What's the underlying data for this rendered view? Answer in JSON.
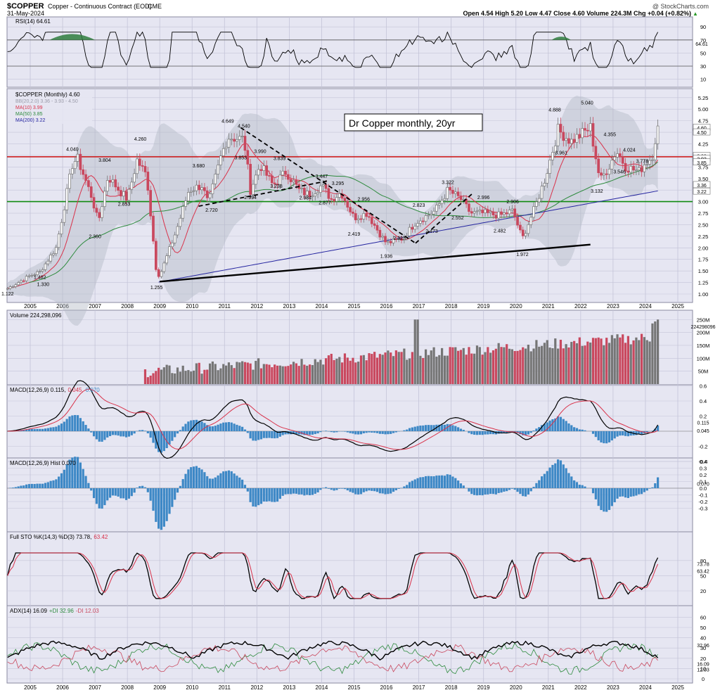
{
  "header": {
    "symbol": "$COPPER",
    "name": "Copper - Continuous Contract (EOD)",
    "exchange": "CME",
    "date": "31-May-2024",
    "watermark": "@ StockCharts.com",
    "quote": "Open 4.54  High 5.20  Low 4.47  Close 4.60  Volume 224.3M  Chg +0.04 (+0.82%)",
    "up_arrow": "▲"
  },
  "colors": {
    "panel_bg": "#e6e6f2",
    "grid": "#c4c4d8",
    "up": "#757575",
    "down": "#c9485e",
    "ma10": "#d9324a",
    "ma50": "#2e8b3e",
    "ma200": "#2525a0",
    "bb_fill": "#b4bbc6",
    "macd_hist": "#3d88c6",
    "red_line": "#cc1010",
    "green_line": "#108a10"
  },
  "panels": {
    "rsi": {
      "title": "RSI(14) 64.61",
      "ticks": [
        "90",
        "70",
        "50",
        "30",
        "10"
      ],
      "value_label": "64.61"
    },
    "price": {
      "title": "$COPPER (Monthly) 4.60",
      "legend": [
        {
          "text": "BB(20,2.0) 3.36 - 3.93 - 4.50",
          "color": "#9a9aa8"
        },
        {
          "text": "MA(10) 3.99",
          "color": "#d9324a"
        },
        {
          "text": "MA(50) 3.85",
          "color": "#2e8b3e"
        },
        {
          "text": "MA(200) 3.22",
          "color": "#2525a0"
        }
      ],
      "ticks": [
        "5.25",
        "5.00",
        "4.75",
        "4.50",
        "4.25",
        "4.00",
        "3.75",
        "3.50",
        "3.25",
        "3.00",
        "2.75",
        "2.50",
        "2.25",
        "2.00",
        "1.75",
        "1.50",
        "1.25",
        "1.00"
      ],
      "right_labels": [
        "4.60",
        "4.50",
        "3.99",
        "3.93",
        "3.85",
        "3.36",
        "3.22"
      ],
      "annotation": "Dr Copper monthly, 20yr",
      "hline_red": 3.97,
      "hline_green": 3.0,
      "point_labels": [
        "1.122",
        "1.482",
        "1.330",
        "4.040",
        "2.360",
        "3.804",
        "2.853",
        "4.260",
        "1.255",
        "3.680",
        "2.720",
        "4.649",
        "4.540",
        "3.853",
        "3.990",
        "2.994",
        "3.839",
        "3.238",
        "2.984",
        "3.447",
        "3.295",
        "2.877",
        "2.956",
        "2.419",
        "2.323",
        "1.936",
        "2.823",
        "3.322",
        "2.473",
        "2.552",
        "2.996",
        "2.482",
        "2.906",
        "1.972",
        "4.888",
        "3.961",
        "5.040",
        "4.355",
        "3.132",
        "4.024",
        "3.546",
        "3.778"
      ]
    },
    "volume": {
      "title": "Volume 224,298,096",
      "ticks": [
        "250M",
        "200M",
        "150M",
        "100M",
        "50M"
      ],
      "value_label": "224298096"
    },
    "macd": {
      "title": "MACD(12,26,9) 0.115,",
      "signal_text": "0.045,",
      "hist_text": "0.070",
      "ticks": [
        "0.6",
        "0.4",
        "0.2",
        "-0.2",
        "-0.4"
      ],
      "right_labels": [
        "0.115",
        "0.045"
      ]
    },
    "hist": {
      "title": "MACD(12,26,9) Hist 0.070",
      "ticks": [
        "0.4",
        "0.3",
        "0.2",
        "0.1",
        "0.0",
        "-0.1",
        "-0.2",
        "-0.3"
      ],
      "value_label": "0.070"
    },
    "sto": {
      "title": "Full STO %K(14,3) %D(3) 73.78,",
      "d_text": "63.42",
      "ticks": [
        "80",
        "50",
        "20"
      ],
      "right_labels": [
        "73.78",
        "63.42"
      ]
    },
    "adx": {
      "title": "ADX(14) 16.09",
      "plus_text": "+DI 32.96",
      "minus_text": "-DI 12.03",
      "ticks": [
        "60",
        "50",
        "40",
        "30",
        "20",
        "10",
        "0"
      ],
      "right_labels": [
        "32.96",
        "16.09",
        "12.03"
      ]
    }
  },
  "x_axis": {
    "labels": [
      "2005",
      "2006",
      "2007",
      "2008",
      "2009",
      "2010",
      "2011",
      "2012",
      "2013",
      "2014",
      "2015",
      "2016",
      "2017",
      "2018",
      "2019",
      "2020",
      "2021",
      "2022",
      "2023",
      "2024",
      "2025"
    ]
  },
  "chart_data": {
    "type": "candlestick",
    "title": "$COPPER (Monthly)",
    "price_anchors": [
      {
        "x": 2004.3,
        "y": 1.12
      },
      {
        "x": 2005.0,
        "y": 1.4
      },
      {
        "x": 2005.3,
        "y": 1.48
      },
      {
        "x": 2005.8,
        "y": 2.0
      },
      {
        "x": 2006.3,
        "y": 3.8
      },
      {
        "x": 2006.45,
        "y": 3.95
      },
      {
        "x": 2006.9,
        "y": 3.1
      },
      {
        "x": 2007.1,
        "y": 2.55
      },
      {
        "x": 2007.4,
        "y": 3.55
      },
      {
        "x": 2007.8,
        "y": 3.2
      },
      {
        "x": 2008.0,
        "y": 3.05
      },
      {
        "x": 2008.3,
        "y": 3.9
      },
      {
        "x": 2008.6,
        "y": 3.55
      },
      {
        "x": 2008.9,
        "y": 1.45
      },
      {
        "x": 2009.0,
        "y": 1.4
      },
      {
        "x": 2009.5,
        "y": 2.35
      },
      {
        "x": 2009.9,
        "y": 3.25
      },
      {
        "x": 2010.3,
        "y": 3.35
      },
      {
        "x": 2010.5,
        "y": 2.95
      },
      {
        "x": 2010.9,
        "y": 4.0
      },
      {
        "x": 2011.1,
        "y": 4.4
      },
      {
        "x": 2011.6,
        "y": 4.35
      },
      {
        "x": 2011.8,
        "y": 3.25
      },
      {
        "x": 2012.1,
        "y": 3.8
      },
      {
        "x": 2012.5,
        "y": 3.35
      },
      {
        "x": 2012.9,
        "y": 3.65
      },
      {
        "x": 2013.3,
        "y": 3.25
      },
      {
        "x": 2013.6,
        "y": 3.15
      },
      {
        "x": 2014.0,
        "y": 3.35
      },
      {
        "x": 2014.3,
        "y": 3.05
      },
      {
        "x": 2014.6,
        "y": 3.2
      },
      {
        "x": 2015.0,
        "y": 2.65
      },
      {
        "x": 2015.4,
        "y": 2.75
      },
      {
        "x": 2015.8,
        "y": 2.3
      },
      {
        "x": 2016.0,
        "y": 2.1
      },
      {
        "x": 2016.5,
        "y": 2.2
      },
      {
        "x": 2016.9,
        "y": 2.55
      },
      {
        "x": 2017.5,
        "y": 2.8
      },
      {
        "x": 2017.9,
        "y": 3.25
      },
      {
        "x": 2018.3,
        "y": 3.05
      },
      {
        "x": 2018.6,
        "y": 2.75
      },
      {
        "x": 2019.0,
        "y": 2.75
      },
      {
        "x": 2019.5,
        "y": 2.7
      },
      {
        "x": 2019.9,
        "y": 2.8
      },
      {
        "x": 2020.2,
        "y": 2.2
      },
      {
        "x": 2020.6,
        "y": 2.9
      },
      {
        "x": 2020.9,
        "y": 3.5
      },
      {
        "x": 2021.3,
        "y": 4.55
      },
      {
        "x": 2021.7,
        "y": 4.3
      },
      {
        "x": 2022.0,
        "y": 4.45
      },
      {
        "x": 2022.3,
        "y": 4.6
      },
      {
        "x": 2022.6,
        "y": 3.45
      },
      {
        "x": 2022.9,
        "y": 3.8
      },
      {
        "x": 2023.1,
        "y": 4.1
      },
      {
        "x": 2023.4,
        "y": 3.75
      },
      {
        "x": 2023.8,
        "y": 3.65
      },
      {
        "x": 2024.0,
        "y": 3.85
      },
      {
        "x": 2024.2,
        "y": 3.95
      },
      {
        "x": 2024.35,
        "y": 4.55
      },
      {
        "x": 2024.42,
        "y": 4.6
      }
    ],
    "labelled_points": [
      {
        "x": 2004.3,
        "y": 1.122,
        "label": "1.122"
      },
      {
        "x": 2005.3,
        "y": 1.482,
        "label": "1.482"
      },
      {
        "x": 2005.4,
        "y": 1.33,
        "label": "1.330"
      },
      {
        "x": 2006.3,
        "y": 4.04,
        "label": "4.040"
      },
      {
        "x": 2007.0,
        "y": 2.36,
        "label": "2.360"
      },
      {
        "x": 2007.3,
        "y": 3.804,
        "label": "3.804"
      },
      {
        "x": 2007.9,
        "y": 2.853,
        "label": "2.853"
      },
      {
        "x": 2008.4,
        "y": 4.26,
        "label": "4.260"
      },
      {
        "x": 2008.9,
        "y": 1.255,
        "label": "1.255"
      },
      {
        "x": 2010.2,
        "y": 3.68,
        "label": "3.680"
      },
      {
        "x": 2010.6,
        "y": 2.72,
        "label": "2.720"
      },
      {
        "x": 2011.1,
        "y": 4.649,
        "label": "4.649"
      },
      {
        "x": 2011.6,
        "y": 4.54,
        "label": "4.540"
      },
      {
        "x": 2011.5,
        "y": 3.853,
        "label": "3.853"
      },
      {
        "x": 2012.1,
        "y": 3.99,
        "label": "3.990"
      },
      {
        "x": 2011.8,
        "y": 2.994,
        "label": "2.994"
      },
      {
        "x": 2012.7,
        "y": 3.839,
        "label": "3.839"
      },
      {
        "x": 2012.6,
        "y": 3.238,
        "label": "3.238"
      },
      {
        "x": 2013.5,
        "y": 2.984,
        "label": "2.984"
      },
      {
        "x": 2014.0,
        "y": 3.447,
        "label": "3.447"
      },
      {
        "x": 2014.5,
        "y": 3.295,
        "label": "3.295"
      },
      {
        "x": 2014.1,
        "y": 2.877,
        "label": "2.877"
      },
      {
        "x": 2015.3,
        "y": 2.956,
        "label": "2.956"
      },
      {
        "x": 2015.0,
        "y": 2.419,
        "label": "2.419"
      },
      {
        "x": 2016.4,
        "y": 2.323,
        "label": "2.323"
      },
      {
        "x": 2016.0,
        "y": 1.936,
        "label": "1.936"
      },
      {
        "x": 2017.0,
        "y": 2.823,
        "label": "2.823"
      },
      {
        "x": 2017.9,
        "y": 3.322,
        "label": "3.322"
      },
      {
        "x": 2017.4,
        "y": 2.473,
        "label": "2.473"
      },
      {
        "x": 2018.2,
        "y": 2.552,
        "label": "2.552"
      },
      {
        "x": 2019.0,
        "y": 2.996,
        "label": "2.996"
      },
      {
        "x": 2019.5,
        "y": 2.482,
        "label": "2.482"
      },
      {
        "x": 2019.9,
        "y": 2.906,
        "label": "2.906"
      },
      {
        "x": 2020.2,
        "y": 1.972,
        "label": "1.972"
      },
      {
        "x": 2021.2,
        "y": 4.888,
        "label": "4.888"
      },
      {
        "x": 2021.4,
        "y": 3.961,
        "label": "3.961"
      },
      {
        "x": 2022.2,
        "y": 5.04,
        "label": "5.040"
      },
      {
        "x": 2022.9,
        "y": 4.355,
        "label": "4.355"
      },
      {
        "x": 2022.5,
        "y": 3.132,
        "label": "3.132"
      },
      {
        "x": 2023.5,
        "y": 4.024,
        "label": "4.024"
      },
      {
        "x": 2023.2,
        "y": 3.546,
        "label": "3.546"
      },
      {
        "x": 2023.9,
        "y": 3.778,
        "label": "3.778"
      }
    ]
  }
}
